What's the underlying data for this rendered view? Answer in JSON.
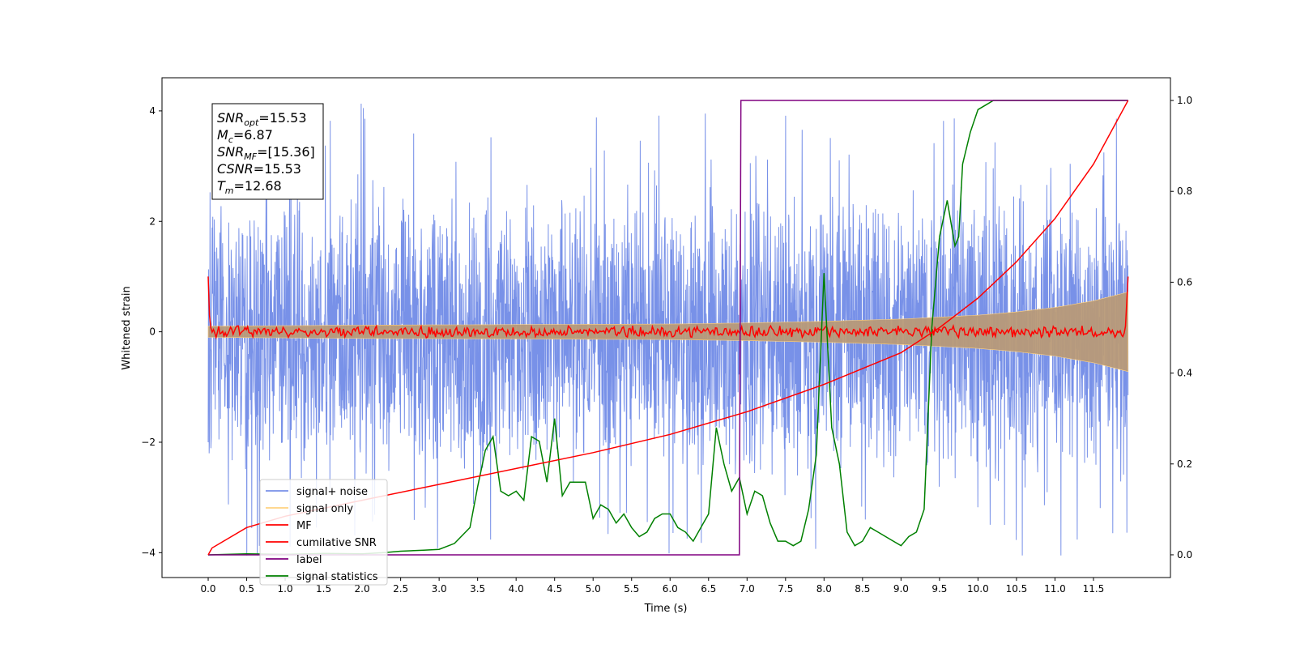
{
  "chart_data": {
    "type": "line",
    "xlabel": "Time (s)",
    "ylabel_left": "Whitened strain",
    "xlim": [
      -0.6,
      12.5
    ],
    "ylim_left": [
      -4.45,
      4.6
    ],
    "ylim_right": [
      -0.05,
      1.05
    ],
    "x_ticks": [
      "0.0",
      "0.5",
      "1.0",
      "1.5",
      "2.0",
      "2.5",
      "3.0",
      "3.5",
      "4.0",
      "4.5",
      "5.0",
      "5.5",
      "6.0",
      "6.5",
      "7.0",
      "7.5",
      "8.0",
      "8.5",
      "9.0",
      "9.5",
      "10.0",
      "10.5",
      "11.0",
      "11.5"
    ],
    "y_left_ticks": [
      "−4",
      "−2",
      "0",
      "2",
      "4"
    ],
    "y_right_ticks": [
      "0.0",
      "0.2",
      "0.4",
      "0.6",
      "0.8",
      "1.0"
    ],
    "grid": false,
    "legend_position": "lower-left",
    "annotation": [
      {
        "main": "SNR",
        "sub": "opt",
        "value": "=15.53"
      },
      {
        "main": "M",
        "sub": "c",
        "value": "=6.87"
      },
      {
        "main": "SNR",
        "sub": "MF",
        "value": "=[15.36]"
      },
      {
        "main": "CSNR",
        "sub": "",
        "value": "=15.53"
      },
      {
        "main": "T",
        "sub": "m",
        "value": "=12.68"
      }
    ],
    "series": [
      {
        "name": "signal+ noise",
        "color": "#7891e8",
        "axis": "left",
        "style": "noise",
        "x_range": [
          0,
          11.95
        ],
        "amplitude_range": [
          -3.3,
          3.6
        ],
        "peaks_max": 4.15,
        "peaks_min": -4.05
      },
      {
        "name": "signal only",
        "color": "#ffd280",
        "axis": "left",
        "style": "envelope",
        "x": [
          0,
          2,
          4,
          6,
          7,
          8,
          9,
          10,
          10.5,
          11,
          11.5,
          11.95
        ],
        "envelope": [
          0.1,
          0.12,
          0.13,
          0.14,
          0.16,
          0.19,
          0.23,
          0.3,
          0.36,
          0.44,
          0.56,
          0.72
        ]
      },
      {
        "name": "MF",
        "color": "#ff0000",
        "axis": "left",
        "style": "wiggle",
        "x_range": [
          0,
          11.95
        ],
        "start_value": 1.0,
        "end_value": 1.0,
        "wiggle_amplitude": 0.08
      },
      {
        "name": "cumilative SNR",
        "color": "#ff0000",
        "axis": "right",
        "x": [
          0,
          0.05,
          0.5,
          1,
          2,
          3,
          4,
          5,
          6,
          7,
          8,
          9,
          9.5,
          10,
          10.5,
          11,
          11.5,
          11.95
        ],
        "y": [
          0.0,
          0.015,
          0.06,
          0.085,
          0.12,
          0.155,
          0.19,
          0.225,
          0.265,
          0.315,
          0.375,
          0.445,
          0.5,
          0.565,
          0.645,
          0.74,
          0.86,
          1.0
        ]
      },
      {
        "name": "label",
        "color": "#800080",
        "axis": "right",
        "x": [
          0,
          6.9,
          6.92,
          11.95
        ],
        "y": [
          0,
          0,
          1,
          1
        ]
      },
      {
        "name": "signal statistics",
        "color": "#008000",
        "axis": "right",
        "x": [
          0,
          0.5,
          1,
          1.5,
          2,
          2.3,
          2.5,
          2.8,
          3.0,
          3.2,
          3.4,
          3.5,
          3.6,
          3.7,
          3.8,
          3.9,
          4.0,
          4.1,
          4.2,
          4.3,
          4.4,
          4.5,
          4.6,
          4.7,
          4.8,
          4.9,
          5.0,
          5.1,
          5.2,
          5.3,
          5.4,
          5.5,
          5.6,
          5.7,
          5.8,
          5.9,
          6.0,
          6.1,
          6.2,
          6.3,
          6.4,
          6.5,
          6.6,
          6.7,
          6.8,
          6.9,
          7.0,
          7.1,
          7.2,
          7.3,
          7.4,
          7.5,
          7.6,
          7.7,
          7.8,
          7.9,
          8.0,
          8.1,
          8.2,
          8.3,
          8.4,
          8.5,
          8.6,
          8.7,
          8.8,
          8.9,
          9.0,
          9.1,
          9.2,
          9.3,
          9.4,
          9.5,
          9.6,
          9.7,
          9.75,
          9.8,
          9.9,
          10.0,
          10.1,
          10.2,
          10.4,
          10.6,
          11.0,
          11.5,
          11.95
        ],
        "y": [
          0.0,
          0.002,
          0.001,
          0.003,
          0.002,
          0.005,
          0.008,
          0.01,
          0.012,
          0.025,
          0.06,
          0.15,
          0.23,
          0.26,
          0.14,
          0.13,
          0.14,
          0.12,
          0.26,
          0.25,
          0.16,
          0.3,
          0.13,
          0.16,
          0.16,
          0.16,
          0.08,
          0.11,
          0.1,
          0.07,
          0.09,
          0.06,
          0.04,
          0.05,
          0.08,
          0.09,
          0.09,
          0.06,
          0.05,
          0.03,
          0.06,
          0.09,
          0.28,
          0.2,
          0.14,
          0.17,
          0.09,
          0.14,
          0.13,
          0.07,
          0.03,
          0.03,
          0.02,
          0.03,
          0.1,
          0.22,
          0.62,
          0.28,
          0.2,
          0.05,
          0.02,
          0.03,
          0.06,
          0.05,
          0.04,
          0.03,
          0.02,
          0.04,
          0.05,
          0.1,
          0.5,
          0.7,
          0.78,
          0.68,
          0.7,
          0.86,
          0.93,
          0.98,
          0.99,
          1.0,
          1.0,
          1.0,
          1.0,
          1.0,
          1.0
        ]
      }
    ]
  }
}
